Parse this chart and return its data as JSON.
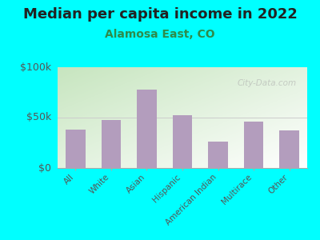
{
  "title": "Median per capita income in 2022",
  "subtitle": "Alamosa East, CO",
  "categories": [
    "All",
    "White",
    "Asian",
    "Hispanic",
    "American Indian",
    "Multirace",
    "Other"
  ],
  "values": [
    38000,
    48000,
    78000,
    52000,
    26000,
    46000,
    37000
  ],
  "bar_color": "#b39dbd",
  "background_outer": "#00ffff",
  "ylim": [
    0,
    100000
  ],
  "yticks": [
    0,
    50000,
    100000
  ],
  "ytick_labels": [
    "$0",
    "$50k",
    "$100k"
  ],
  "title_fontsize": 13,
  "subtitle_fontsize": 10,
  "subtitle_color": "#2e8b4a",
  "title_color": "#222222",
  "tick_color": "#555555",
  "watermark": "City-Data.com",
  "grad_left_top": "#c8e6c0",
  "grad_right_bottom": "#f8f8ff"
}
